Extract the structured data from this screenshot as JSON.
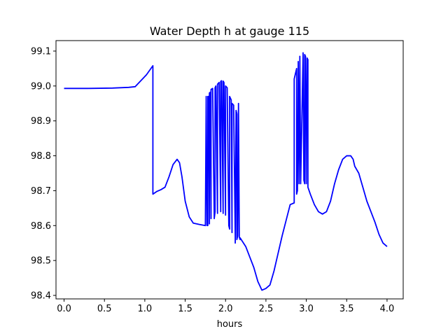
{
  "chart_data": {
    "type": "line",
    "title": "Water Depth h at gauge 115",
    "xlabel": "hours",
    "ylabel": "",
    "xlim": [
      -0.1,
      4.2
    ],
    "ylim": [
      98.39,
      99.13
    ],
    "grid": false,
    "x_ticks": [
      0.0,
      0.5,
      1.0,
      1.5,
      2.0,
      2.5,
      3.0,
      3.5,
      4.0
    ],
    "x_tick_labels": [
      "0.0",
      "0.5",
      "1.0",
      "1.5",
      "2.0",
      "2.5",
      "3.0",
      "3.5",
      "4.0"
    ],
    "y_ticks": [
      98.4,
      98.5,
      98.6,
      98.7,
      98.8,
      98.9,
      99.0,
      99.1
    ],
    "y_tick_labels": [
      "98.4",
      "98.5",
      "98.6",
      "98.7",
      "98.8",
      "98.9",
      "99.0",
      "99.1"
    ],
    "series": [
      {
        "color": "#0000ff",
        "x": [
          0.0,
          0.3,
          0.6,
          0.8,
          0.88,
          0.95,
          1.02,
          1.1,
          1.1,
          1.15,
          1.2,
          1.25,
          1.3,
          1.35,
          1.4,
          1.43,
          1.46,
          1.5,
          1.55,
          1.6,
          1.68,
          1.75,
          1.76,
          1.76,
          1.77,
          1.78,
          1.78,
          1.79,
          1.8,
          1.8,
          1.81,
          1.82,
          1.82,
          1.84,
          1.86,
          1.87,
          1.87,
          1.88,
          1.9,
          1.9,
          1.92,
          1.94,
          1.94,
          1.95,
          1.97,
          1.97,
          1.98,
          2.0,
          2.0,
          2.02,
          2.04,
          2.05,
          2.05,
          2.07,
          2.08,
          2.08,
          2.1,
          2.12,
          2.12,
          2.13,
          2.14,
          2.14,
          2.15,
          2.16,
          2.16,
          2.17,
          2.18,
          2.18,
          2.25,
          2.3,
          2.35,
          2.4,
          2.45,
          2.5,
          2.55,
          2.6,
          2.65,
          2.7,
          2.75,
          2.8,
          2.85,
          2.85,
          2.87,
          2.88,
          2.88,
          2.89,
          2.9,
          2.9,
          2.91,
          2.92,
          2.92,
          2.93,
          2.96,
          2.96,
          2.97,
          2.98,
          2.98,
          2.99,
          3.0,
          3.0,
          3.01,
          3.02,
          3.02,
          3.05,
          3.1,
          3.15,
          3.2,
          3.25,
          3.3,
          3.35,
          3.4,
          3.45,
          3.5,
          3.55,
          3.58,
          3.6,
          3.65,
          3.7,
          3.75,
          3.8,
          3.85,
          3.9,
          3.95,
          4.0
        ],
        "y": [
          98.993,
          98.993,
          98.994,
          98.996,
          98.998,
          99.015,
          99.032,
          99.058,
          98.69,
          98.698,
          98.703,
          98.71,
          98.74,
          98.775,
          98.79,
          98.78,
          98.74,
          98.67,
          98.625,
          98.607,
          98.603,
          98.6,
          98.97,
          98.97,
          98.6,
          98.6,
          98.97,
          98.97,
          98.605,
          98.98,
          98.982,
          98.62,
          98.99,
          98.993,
          98.62,
          98.64,
          98.995,
          99.0,
          98.635,
          99.005,
          99.01,
          98.64,
          99.013,
          99.015,
          98.635,
          99.014,
          99.01,
          98.63,
          99.0,
          98.995,
          98.6,
          98.59,
          98.97,
          98.96,
          98.58,
          98.95,
          98.945,
          98.57,
          98.55,
          98.93,
          98.92,
          98.56,
          98.57,
          98.94,
          98.95,
          98.567,
          98.56,
          98.565,
          98.54,
          98.51,
          98.48,
          98.44,
          98.415,
          98.42,
          98.43,
          98.47,
          98.52,
          98.57,
          98.615,
          98.66,
          98.665,
          99.02,
          99.04,
          99.05,
          98.69,
          98.7,
          99.06,
          99.07,
          98.72,
          99.08,
          99.085,
          98.72,
          99.09,
          99.095,
          98.73,
          98.72,
          99.09,
          99.085,
          98.72,
          98.72,
          99.08,
          99.075,
          98.71,
          98.69,
          98.66,
          98.64,
          98.633,
          98.64,
          98.67,
          98.72,
          98.76,
          98.79,
          98.8,
          98.8,
          98.79,
          98.77,
          98.75,
          98.71,
          98.67,
          98.64,
          98.61,
          98.575,
          98.55,
          98.54
        ]
      }
    ]
  }
}
